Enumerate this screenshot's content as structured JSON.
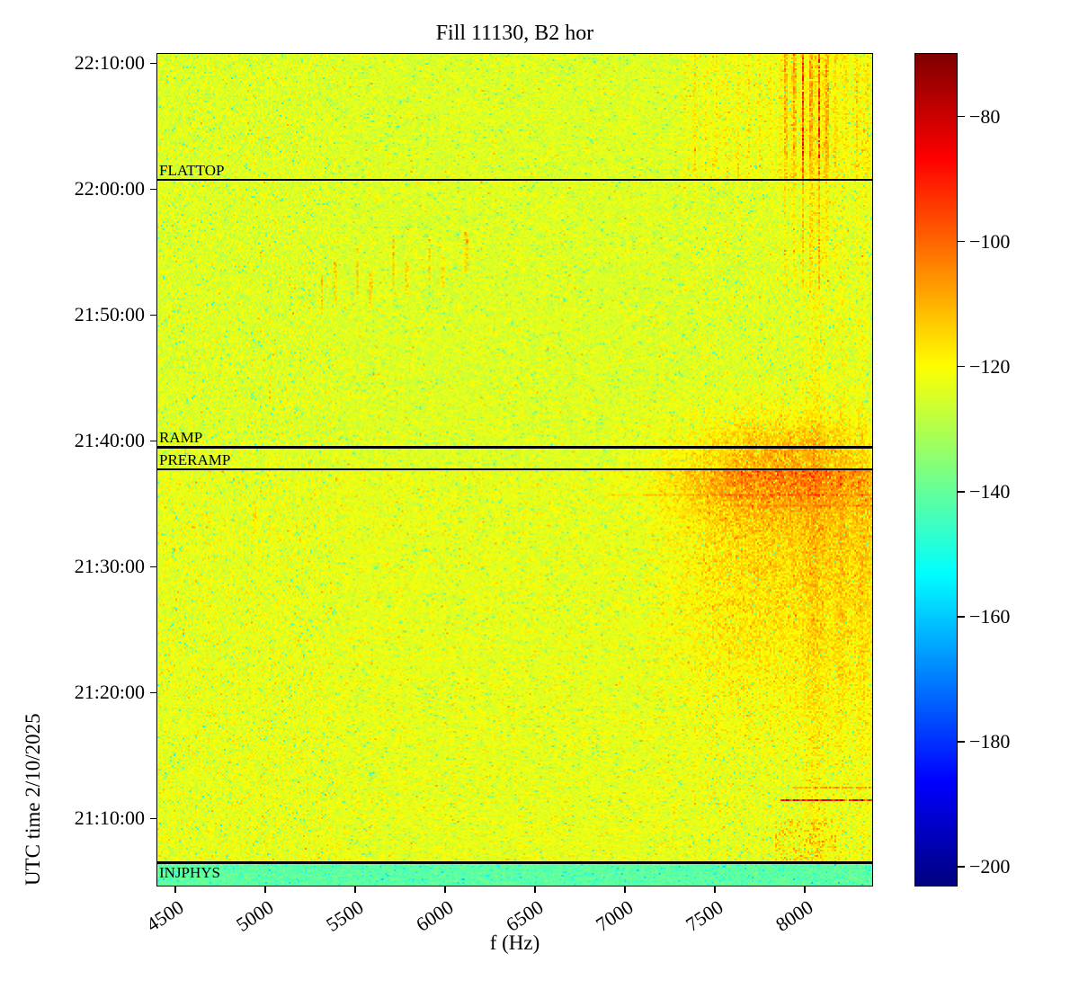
{
  "figure": {
    "title": "Fill 11130, B2 hor",
    "xlabel": "f (Hz)",
    "ylabel": "UTC time 2/10/2025"
  },
  "chart_data": {
    "type": "heatmap",
    "title": "Fill 11130, B2 hor",
    "xlabel": "f (Hz)",
    "ylabel": "UTC time 2/10/2025",
    "colormap": "jet",
    "x_range_hz": [
      4400,
      8375
    ],
    "x_ticks": [
      {
        "value": 4500,
        "label": "4500"
      },
      {
        "value": 5000,
        "label": "5000"
      },
      {
        "value": 5500,
        "label": "5500"
      },
      {
        "value": 6000,
        "label": "6000"
      },
      {
        "value": 6500,
        "label": "6500"
      },
      {
        "value": 7000,
        "label": "7000"
      },
      {
        "value": 7500,
        "label": "7500"
      },
      {
        "value": 8000,
        "label": "8000"
      }
    ],
    "y_range_utc": [
      "21:04:40",
      "22:10:45"
    ],
    "y_ticks": [
      {
        "time": "21:10:00",
        "label": "21:10:00"
      },
      {
        "time": "21:20:00",
        "label": "21:20:00"
      },
      {
        "time": "21:30:00",
        "label": "21:30:00"
      },
      {
        "time": "21:40:00",
        "label": "21:40:00"
      },
      {
        "time": "21:50:00",
        "label": "21:50:00"
      },
      {
        "time": "22:00:00",
        "label": "22:00:00"
      },
      {
        "time": "22:10:00",
        "label": "22:10:00"
      }
    ],
    "colorbar": {
      "value_range_db": [
        -203,
        -70
      ],
      "ticks": [
        {
          "value": -80,
          "label": "−80"
        },
        {
          "value": -100,
          "label": "−100"
        },
        {
          "value": -120,
          "label": "−120"
        },
        {
          "value": -140,
          "label": "−140"
        },
        {
          "value": -160,
          "label": "−160"
        },
        {
          "value": -180,
          "label": "−180"
        },
        {
          "value": -200,
          "label": "−200"
        }
      ]
    },
    "annotations": [
      {
        "label": "FLATTOP",
        "time": "22:00:45",
        "label_side": "above"
      },
      {
        "label": "RAMP",
        "time": "21:39:30",
        "label_side": "above"
      },
      {
        "label": "PRERAMP",
        "time": "21:37:45",
        "label_side": "above"
      },
      {
        "label": "INJPHYS",
        "time": "21:06:30",
        "label_side": "below"
      }
    ],
    "texture": {
      "base_level_db": -124,
      "base_noise_db": 3.3,
      "speckle": {
        "cool_prob": 0.025,
        "cool_db": [
          8,
          24
        ],
        "warm_prob": 0.012,
        "warm_db": [
          4,
          11
        ]
      },
      "injection_band": {
        "end_time": "21:06:30",
        "level_db": -141,
        "noise_db": 2.6
      },
      "plateau": {
        "end_time": "21:37:45",
        "tint_db": 1.2
      },
      "plateau_cloud": {
        "f_start": 7080,
        "f_full": 7620,
        "t_start": "21:13:00",
        "t_full": "21:31:00",
        "boost_db": 8.5
      },
      "injection_spray": {
        "t_end": "21:10:00",
        "f_start": 7840,
        "f_end": 8180,
        "density": 0.3,
        "boost_db": 9
      },
      "ramp_blob": {
        "f_center": 7870,
        "f_sigma_hz": 380,
        "t_center": "21:38:20",
        "t_sigma_s": 150,
        "boost_db": 15
      },
      "stripe_field": {
        "f_start": 7330,
        "spacing_hz": 60,
        "t_faint_start": "21:54:00",
        "faint_factor": 0.35,
        "strong_time": "22:00:45",
        "boost_db": 7,
        "tint_db": 1.6
      },
      "red_columns": {
        "freqs": [
          7895,
          7945,
          7990,
          8035,
          8080,
          8125
        ],
        "t_start": "21:52:00",
        "mid_time": "22:00:45",
        "strong_time": "22:02:30",
        "boost_db": 32
      },
      "warm_columns": [
        {
          "f": 8060,
          "sigma_hz": 40,
          "boost_db": 4.5
        },
        {
          "f": 8200,
          "sigma_hz": 25,
          "boost_db": 3
        },
        {
          "f": 8320,
          "sigma_hz": 22,
          "boost_db": 3
        }
      ],
      "dashes": [
        {
          "f": 5025,
          "t": "21:44:00",
          "half_len_s": 60,
          "boost_db": 9
        },
        {
          "f": 5315,
          "t": "21:51:30",
          "half_len_s": 90,
          "boost_db": 10
        },
        {
          "f": 5390,
          "t": "21:52:30",
          "half_len_s": 100,
          "boost_db": 9
        },
        {
          "f": 5515,
          "t": "21:53:30",
          "half_len_s": 110,
          "boost_db": 11
        },
        {
          "f": 5590,
          "t": "21:52:00",
          "half_len_s": 90,
          "boost_db": 9
        },
        {
          "f": 5715,
          "t": "21:54:00",
          "half_len_s": 120,
          "boost_db": 11
        },
        {
          "f": 5790,
          "t": "21:53:00",
          "half_len_s": 80,
          "boost_db": 8
        },
        {
          "f": 5915,
          "t": "21:54:30",
          "half_len_s": 110,
          "boost_db": 10
        },
        {
          "f": 5990,
          "t": "21:53:30",
          "half_len_s": 80,
          "boost_db": 8
        },
        {
          "f": 6115,
          "t": "21:55:00",
          "half_len_s": 100,
          "boost_db": 10
        },
        {
          "f": 4940,
          "t": "21:34:00",
          "half_len_s": 70,
          "boost_db": 6
        }
      ],
      "h_streaks": [
        {
          "t": "21:11:25",
          "f_start": 7870,
          "f_end": 8375,
          "boost_db": 36
        },
        {
          "t": "21:12:30",
          "f_start": 7940,
          "f_end": 8375,
          "boost_db": 13
        },
        {
          "t": "21:35:40",
          "f_start": 6900,
          "f_end": 8375,
          "boost_db": 6.5
        },
        {
          "t": "21:34:50",
          "f_start": 7550,
          "f_end": 8375,
          "boost_db": 5
        }
      ]
    }
  }
}
